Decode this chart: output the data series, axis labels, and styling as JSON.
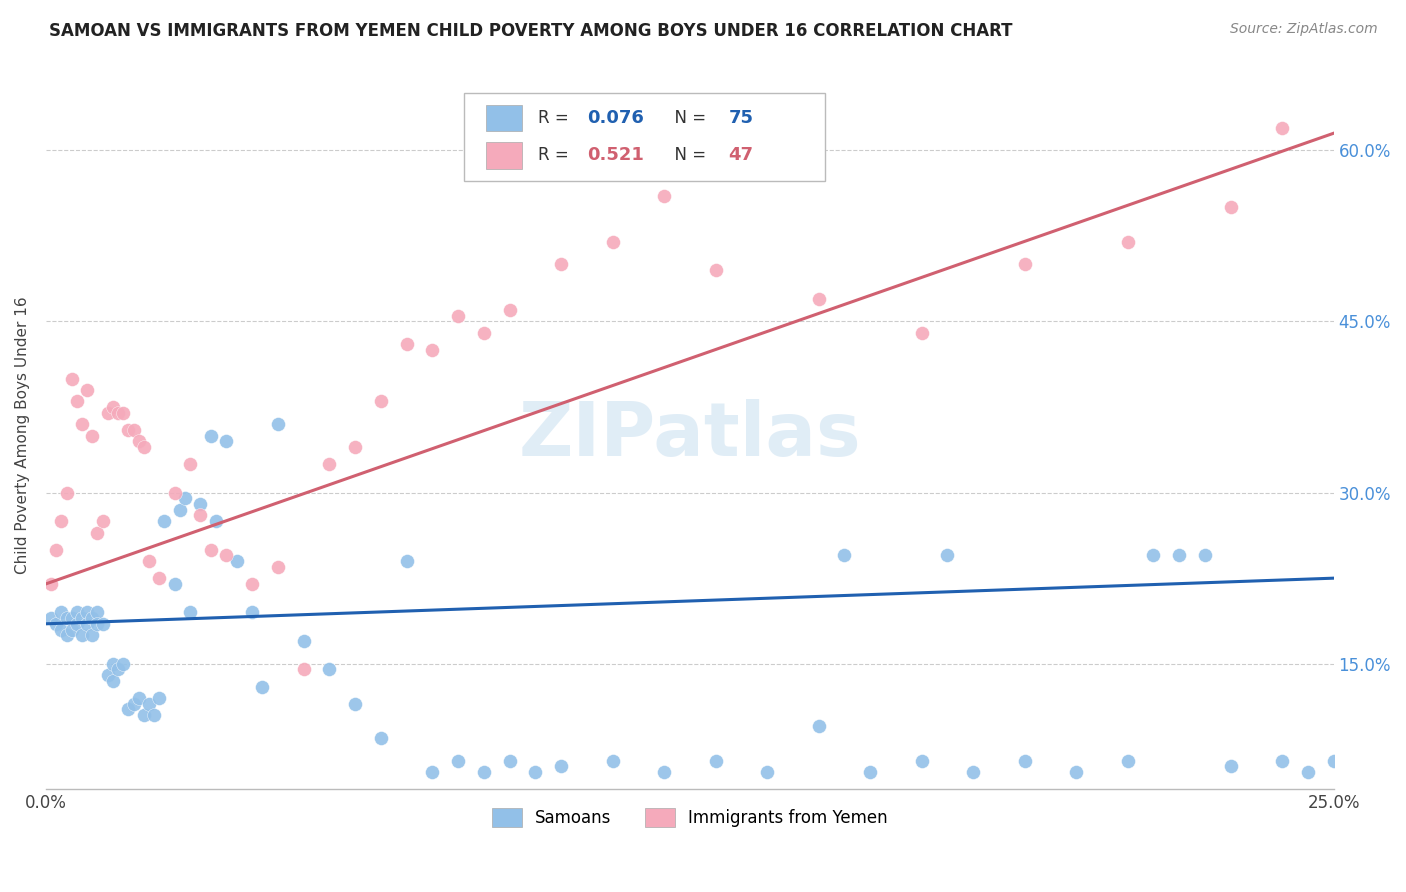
{
  "title": "SAMOAN VS IMMIGRANTS FROM YEMEN CHILD POVERTY AMONG BOYS UNDER 16 CORRELATION CHART",
  "source": "Source: ZipAtlas.com",
  "ylabel": "Child Poverty Among Boys Under 16",
  "xlim": [
    0.0,
    0.25
  ],
  "ylim": [
    0.04,
    0.66
  ],
  "yticks": [
    0.15,
    0.3,
    0.45,
    0.6
  ],
  "ytick_labels": [
    "15.0%",
    "30.0%",
    "45.0%",
    "60.0%"
  ],
  "blue_color": "#92C0E8",
  "pink_color": "#F5AABB",
  "blue_line_color": "#2060B0",
  "pink_line_color": "#D06070",
  "watermark": "ZIPatlas",
  "blue_line_x0": 0.0,
  "blue_line_y0": 0.185,
  "blue_line_x1": 0.25,
  "blue_line_y1": 0.225,
  "pink_line_x0": 0.0,
  "pink_line_y0": 0.22,
  "pink_line_x1": 0.25,
  "pink_line_y1": 0.615,
  "blue_scatter_x": [
    0.001,
    0.002,
    0.003,
    0.003,
    0.004,
    0.004,
    0.005,
    0.005,
    0.006,
    0.006,
    0.007,
    0.007,
    0.008,
    0.008,
    0.009,
    0.009,
    0.01,
    0.01,
    0.011,
    0.012,
    0.013,
    0.013,
    0.014,
    0.015,
    0.016,
    0.017,
    0.018,
    0.019,
    0.02,
    0.021,
    0.022,
    0.023,
    0.025,
    0.026,
    0.027,
    0.028,
    0.03,
    0.032,
    0.033,
    0.035,
    0.037,
    0.04,
    0.042,
    0.045,
    0.05,
    0.055,
    0.06,
    0.065,
    0.07,
    0.075,
    0.08,
    0.085,
    0.09,
    0.095,
    0.1,
    0.11,
    0.12,
    0.13,
    0.14,
    0.15,
    0.16,
    0.17,
    0.18,
    0.19,
    0.2,
    0.21,
    0.215,
    0.22,
    0.225,
    0.23,
    0.24,
    0.245,
    0.25,
    0.175,
    0.155
  ],
  "blue_scatter_y": [
    0.19,
    0.185,
    0.195,
    0.18,
    0.19,
    0.175,
    0.19,
    0.18,
    0.195,
    0.185,
    0.19,
    0.175,
    0.195,
    0.185,
    0.19,
    0.175,
    0.195,
    0.185,
    0.185,
    0.14,
    0.15,
    0.135,
    0.145,
    0.15,
    0.11,
    0.115,
    0.12,
    0.105,
    0.115,
    0.105,
    0.12,
    0.275,
    0.22,
    0.285,
    0.295,
    0.195,
    0.29,
    0.35,
    0.275,
    0.345,
    0.24,
    0.195,
    0.13,
    0.36,
    0.17,
    0.145,
    0.115,
    0.085,
    0.24,
    0.055,
    0.065,
    0.055,
    0.065,
    0.055,
    0.06,
    0.065,
    0.055,
    0.065,
    0.055,
    0.095,
    0.055,
    0.065,
    0.055,
    0.065,
    0.055,
    0.065,
    0.245,
    0.245,
    0.245,
    0.06,
    0.065,
    0.055,
    0.065,
    0.245,
    0.245
  ],
  "pink_scatter_x": [
    0.001,
    0.002,
    0.003,
    0.004,
    0.005,
    0.006,
    0.007,
    0.008,
    0.009,
    0.01,
    0.011,
    0.012,
    0.013,
    0.014,
    0.015,
    0.016,
    0.017,
    0.018,
    0.019,
    0.02,
    0.022,
    0.025,
    0.028,
    0.03,
    0.032,
    0.035,
    0.04,
    0.045,
    0.05,
    0.055,
    0.06,
    0.065,
    0.07,
    0.075,
    0.08,
    0.085,
    0.09,
    0.1,
    0.11,
    0.12,
    0.13,
    0.15,
    0.17,
    0.19,
    0.21,
    0.23,
    0.24
  ],
  "pink_scatter_y": [
    0.22,
    0.25,
    0.275,
    0.3,
    0.4,
    0.38,
    0.36,
    0.39,
    0.35,
    0.265,
    0.275,
    0.37,
    0.375,
    0.37,
    0.37,
    0.355,
    0.355,
    0.345,
    0.34,
    0.24,
    0.225,
    0.3,
    0.325,
    0.28,
    0.25,
    0.245,
    0.22,
    0.235,
    0.145,
    0.325,
    0.34,
    0.38,
    0.43,
    0.425,
    0.455,
    0.44,
    0.46,
    0.5,
    0.52,
    0.56,
    0.495,
    0.47,
    0.44,
    0.5,
    0.52,
    0.55,
    0.62
  ]
}
